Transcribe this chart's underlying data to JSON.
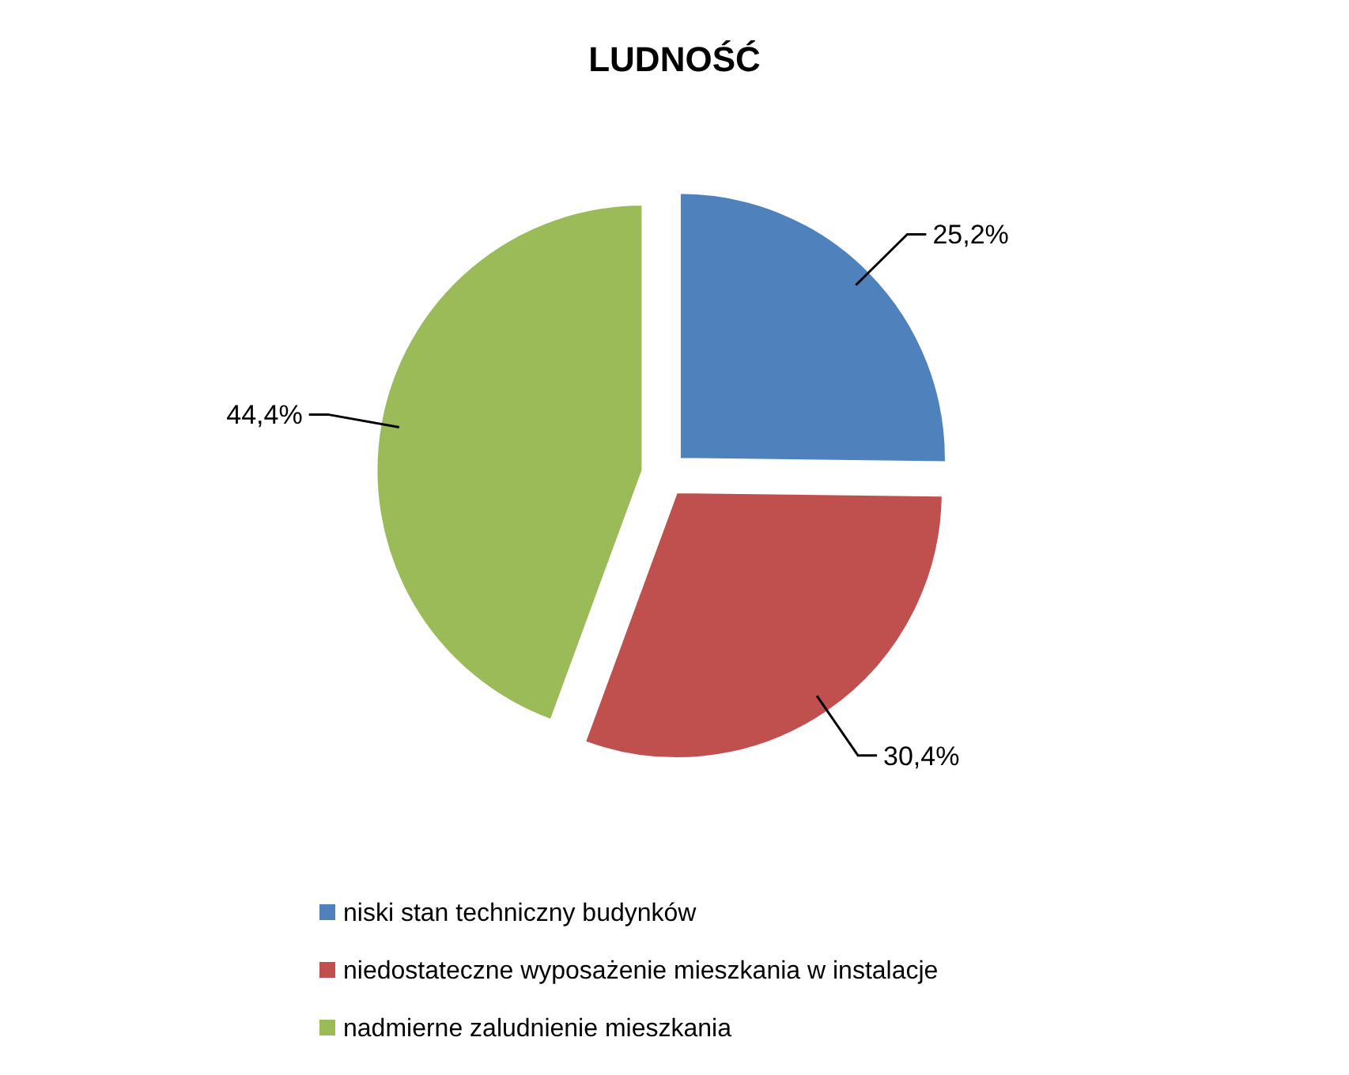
{
  "chart_data": {
    "type": "pie",
    "title": "LUDNOŚĆ",
    "categories": [
      "niski stan techniczny budynków",
      "niedostateczne wyposażenie mieszkania w instalacje",
      "nadmierne zaludnienie mieszkania"
    ],
    "values": [
      25.2,
      30.4,
      44.4
    ],
    "colors": [
      "#4f81bd",
      "#c0504d",
      "#9bbb59"
    ],
    "value_labels": [
      "25,2%",
      "30,4%",
      "44,4%"
    ],
    "legend": "bottom"
  }
}
